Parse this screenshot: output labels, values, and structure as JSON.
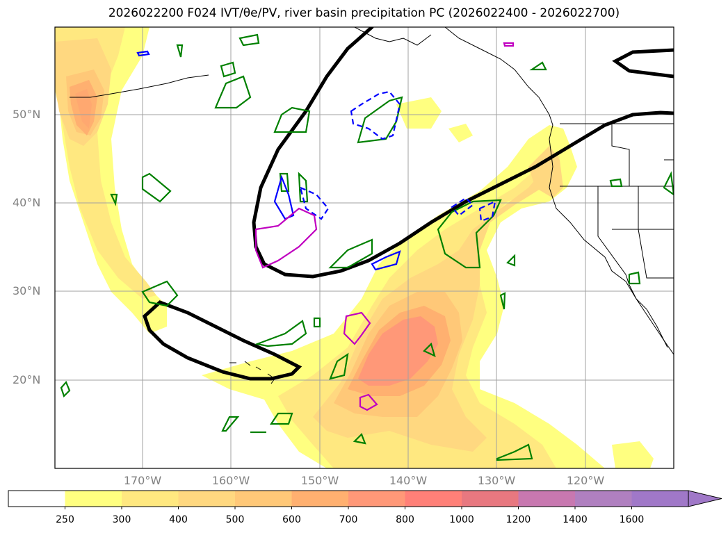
{
  "title": "2026022200 F024 IVT/θe/PV, river basin precipitation PC (2026022400 - 2026022700)",
  "map": {
    "region": "North Pacific / west coast of North America",
    "lat_labels": [
      {
        "id": "50n",
        "text": "50°N"
      },
      {
        "id": "40n",
        "text": "40°N"
      },
      {
        "id": "30n",
        "text": "30°N"
      },
      {
        "id": "20n",
        "text": "20°N"
      }
    ],
    "lon_labels": [
      {
        "id": "170w",
        "text": "170°W"
      },
      {
        "id": "160w",
        "text": "160°W"
      },
      {
        "id": "150w",
        "text": "150°W"
      },
      {
        "id": "140w",
        "text": "140°W"
      },
      {
        "id": "130w",
        "text": "130°W"
      },
      {
        "id": "120w",
        "text": "120°W"
      }
    ],
    "grid": true,
    "fields": {
      "ivt_fill": "IVT shaded contours (kg m-1 s-1)",
      "black_contour": "θe contour",
      "green_contours": "positive PV anomaly",
      "blue_contours": "PV contour",
      "magenta_contours": "PV contour"
    },
    "colors": {
      "contour_black": "#000000",
      "contour_green": "#008000",
      "contour_blue": "#0000ff",
      "contour_magenta": "#c000c0",
      "grid": "#a0a0a0",
      "coast": "#000000"
    }
  },
  "colorbar": {
    "labels": [
      "250",
      "300",
      "400",
      "500",
      "600",
      "700",
      "800",
      "1000",
      "1200",
      "1400",
      "1600"
    ],
    "colors": [
      "#ffffff",
      "#ffff80",
      "#ffe880",
      "#ffd880",
      "#ffc878",
      "#ffb070",
      "#ff9878",
      "#ff8078",
      "#e87880",
      "#c878b0",
      "#b080c0",
      "#a078c8"
    ],
    "extend": "max"
  }
}
